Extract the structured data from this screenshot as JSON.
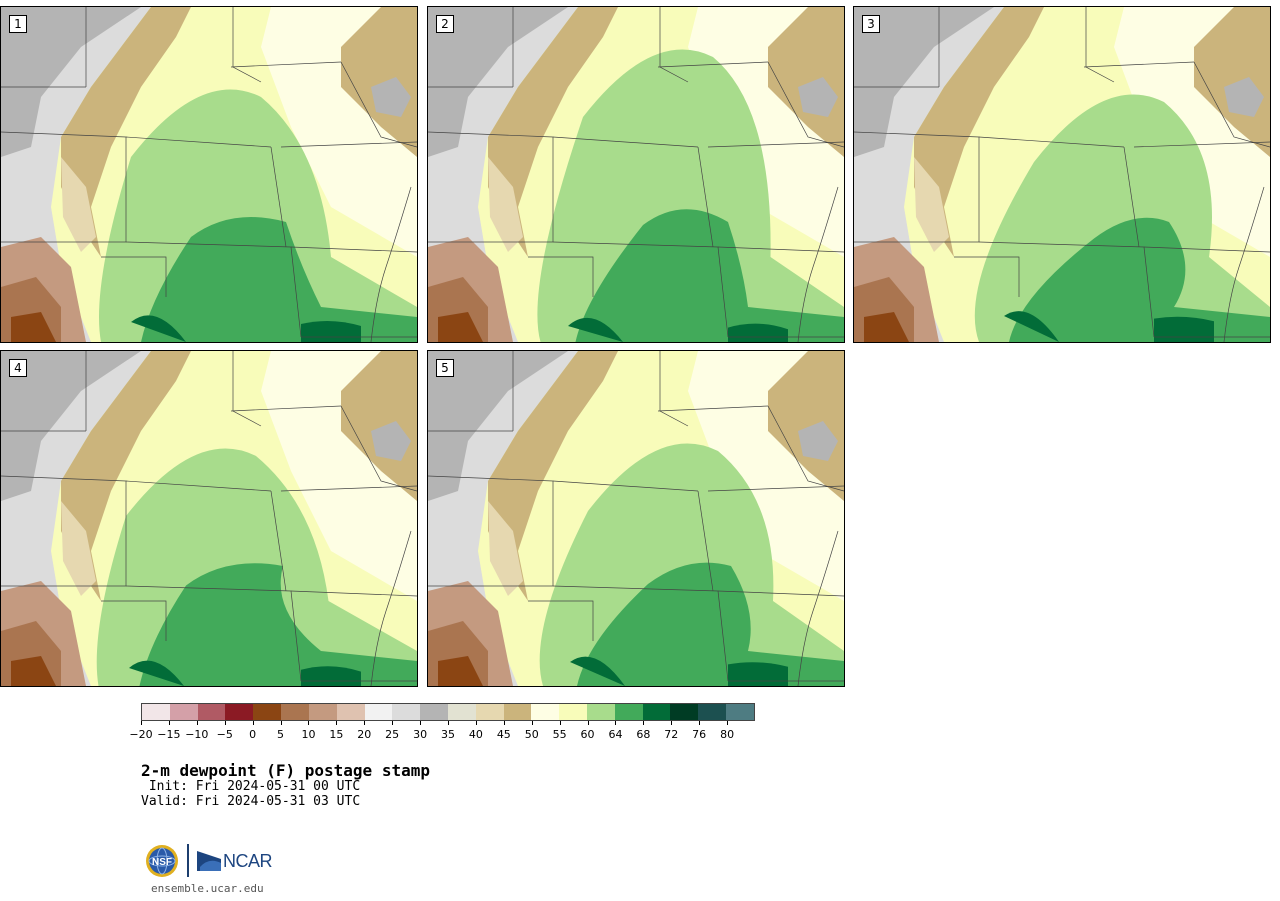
{
  "panels": [
    {
      "label": "1",
      "variant": 0
    },
    {
      "label": "2",
      "variant": 1
    },
    {
      "label": "3",
      "variant": 2
    },
    {
      "label": "4",
      "variant": 3
    },
    {
      "label": "5",
      "variant": 4
    }
  ],
  "legend": {
    "colors": [
      "#f2e6e8",
      "#d4a0a8",
      "#b05a64",
      "#8b1a24",
      "#8b4513",
      "#aa7550",
      "#c49a80",
      "#dfc2b0",
      "#f2f2f2",
      "#dcdcdc",
      "#b4b4b4",
      "#e2e2d2",
      "#e6d8b0",
      "#cbb47c",
      "#fefee4",
      "#f8fcba",
      "#a8dc8c",
      "#42aa5a",
      "#026c38",
      "#003c24",
      "#1c5050",
      "#4e7c82"
    ],
    "ticks": [
      "−20",
      "−15",
      "−10",
      "−5",
      "0",
      "5",
      "10",
      "15",
      "20",
      "25",
      "30",
      "35",
      "40",
      "45",
      "50",
      "55",
      "60",
      "64",
      "68",
      "72",
      "76",
      "80"
    ]
  },
  "title": "2-m dewpoint (F) postage stamp",
  "init": " Init: Fri 2024-05-31 00 UTC",
  "valid": "Valid: Fri 2024-05-31 03 UTC",
  "logo": {
    "org": "NCAR",
    "seal": "NSF"
  },
  "site": "ensemble.ucar.edu"
}
